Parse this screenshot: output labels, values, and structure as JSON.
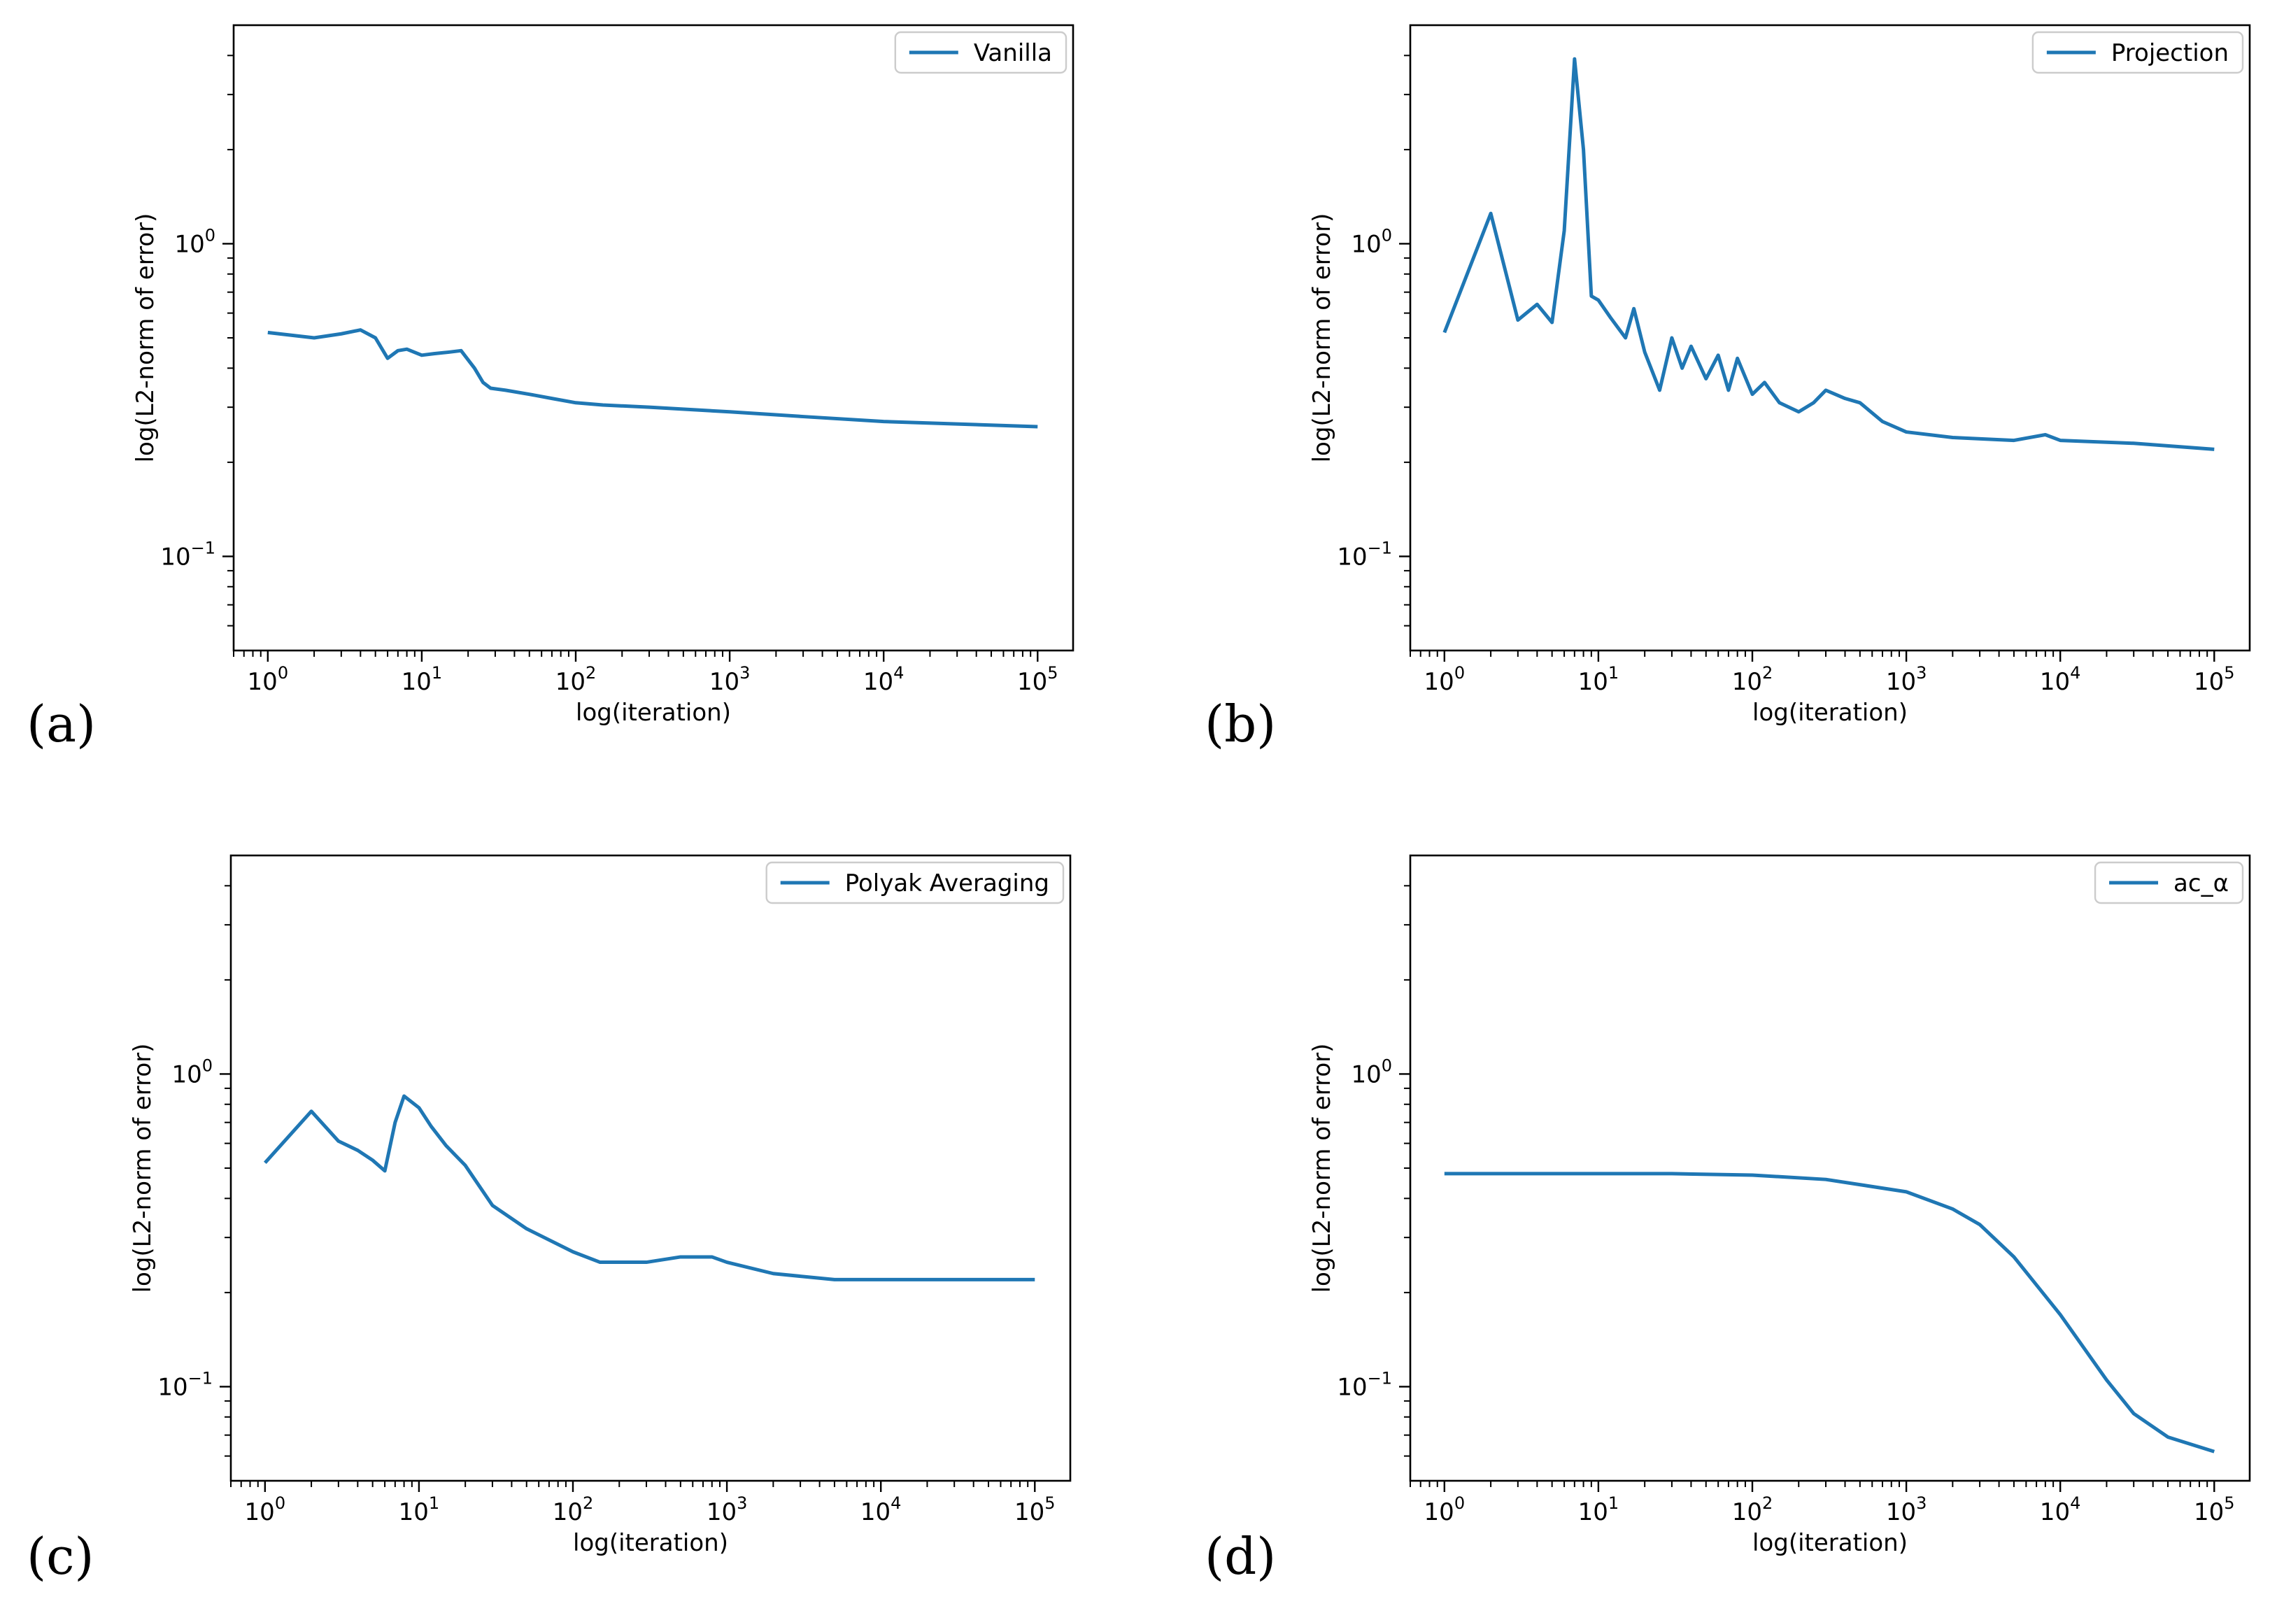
{
  "chart_data": [
    {
      "type": "line",
      "panel_label": "(a)",
      "series_name": "Vanilla",
      "legend_position": "top-right",
      "xlabel": "log(iteration)",
      "ylabel": "log(L2-norm of error)",
      "xscale": "log",
      "yscale": "log",
      "xlim": [
        0.6,
        170000
      ],
      "ylim": [
        0.05,
        5
      ],
      "x_ticks": [
        {
          "base": "10",
          "exp": "0",
          "value": 1
        },
        {
          "base": "10",
          "exp": "1",
          "value": 10
        },
        {
          "base": "10",
          "exp": "2",
          "value": 100
        },
        {
          "base": "10",
          "exp": "3",
          "value": 1000
        },
        {
          "base": "10",
          "exp": "4",
          "value": 10000
        },
        {
          "base": "10",
          "exp": "5",
          "value": 100000
        }
      ],
      "y_ticks": [
        {
          "base": "10",
          "exp": "0",
          "value": 1
        },
        {
          "base": "10",
          "exp": "−1",
          "value": 0.1
        }
      ],
      "line_color": "#1f77b4",
      "x": [
        1,
        2,
        3,
        4,
        5,
        6,
        7,
        8,
        10,
        12,
        15,
        18,
        22,
        25,
        28,
        35,
        50,
        70,
        100,
        150,
        300,
        1000,
        3000,
        10000,
        100000
      ],
      "y": [
        0.52,
        0.5,
        0.515,
        0.53,
        0.5,
        0.43,
        0.455,
        0.46,
        0.44,
        0.445,
        0.45,
        0.455,
        0.4,
        0.36,
        0.345,
        0.34,
        0.33,
        0.32,
        0.31,
        0.305,
        0.3,
        0.29,
        0.28,
        0.27,
        0.26
      ]
    },
    {
      "type": "line",
      "panel_label": "(b)",
      "series_name": "Projection",
      "legend_position": "top-right",
      "xlabel": "log(iteration)",
      "ylabel": "log(L2-norm of error)",
      "xscale": "log",
      "yscale": "log",
      "xlim": [
        0.6,
        170000
      ],
      "ylim": [
        0.05,
        5
      ],
      "x_ticks": [
        {
          "base": "10",
          "exp": "0",
          "value": 1
        },
        {
          "base": "10",
          "exp": "1",
          "value": 10
        },
        {
          "base": "10",
          "exp": "2",
          "value": 100
        },
        {
          "base": "10",
          "exp": "3",
          "value": 1000
        },
        {
          "base": "10",
          "exp": "4",
          "value": 10000
        },
        {
          "base": "10",
          "exp": "5",
          "value": 100000
        }
      ],
      "y_ticks": [
        {
          "base": "10",
          "exp": "0",
          "value": 1
        },
        {
          "base": "10",
          "exp": "−1",
          "value": 0.1
        }
      ],
      "line_color": "#1f77b4",
      "x": [
        1,
        2,
        3,
        4,
        5,
        6,
        7,
        8,
        9,
        10,
        12,
        15,
        17,
        20,
        25,
        30,
        35,
        40,
        50,
        60,
        70,
        80,
        100,
        120,
        150,
        200,
        250,
        300,
        400,
        500,
        700,
        1000,
        2000,
        5000,
        8000,
        10000,
        30000,
        100000
      ],
      "y": [
        0.52,
        1.25,
        0.57,
        0.64,
        0.56,
        1.1,
        3.9,
        2.0,
        0.68,
        0.66,
        0.58,
        0.5,
        0.62,
        0.45,
        0.34,
        0.5,
        0.4,
        0.47,
        0.37,
        0.44,
        0.34,
        0.43,
        0.33,
        0.36,
        0.31,
        0.29,
        0.31,
        0.34,
        0.32,
        0.31,
        0.27,
        0.25,
        0.24,
        0.235,
        0.245,
        0.235,
        0.23,
        0.22
      ]
    },
    {
      "type": "line",
      "panel_label": "(c)",
      "series_name": "Polyak Averaging",
      "legend_position": "top-right",
      "xlabel": "log(iteration)",
      "ylabel": "log(L2-norm of error)",
      "xscale": "log",
      "yscale": "log",
      "xlim": [
        0.6,
        170000
      ],
      "ylim": [
        0.05,
        5
      ],
      "x_ticks": [
        {
          "base": "10",
          "exp": "0",
          "value": 1
        },
        {
          "base": "10",
          "exp": "1",
          "value": 10
        },
        {
          "base": "10",
          "exp": "2",
          "value": 100
        },
        {
          "base": "10",
          "exp": "3",
          "value": 1000
        },
        {
          "base": "10",
          "exp": "4",
          "value": 10000
        },
        {
          "base": "10",
          "exp": "5",
          "value": 100000
        }
      ],
      "y_ticks": [
        {
          "base": "10",
          "exp": "0",
          "value": 1
        },
        {
          "base": "10",
          "exp": "−1",
          "value": 0.1
        }
      ],
      "line_color": "#1f77b4",
      "x": [
        1,
        2,
        3,
        4,
        5,
        6,
        7,
        8,
        10,
        12,
        15,
        20,
        30,
        50,
        100,
        150,
        200,
        300,
        500,
        800,
        1000,
        2000,
        5000,
        10000,
        100000
      ],
      "y": [
        0.52,
        0.76,
        0.61,
        0.57,
        0.53,
        0.49,
        0.7,
        0.85,
        0.78,
        0.68,
        0.59,
        0.51,
        0.38,
        0.32,
        0.27,
        0.25,
        0.25,
        0.25,
        0.26,
        0.26,
        0.25,
        0.23,
        0.22,
        0.22,
        0.22
      ]
    },
    {
      "type": "line",
      "panel_label": "(d)",
      "series_name": "ac_α",
      "legend_position": "top-right",
      "xlabel": "log(iteration)",
      "ylabel": "log(L2-norm of error)",
      "xscale": "log",
      "yscale": "log",
      "xlim": [
        0.6,
        170000
      ],
      "ylim": [
        0.05,
        5
      ],
      "x_ticks": [
        {
          "base": "10",
          "exp": "0",
          "value": 1
        },
        {
          "base": "10",
          "exp": "1",
          "value": 10
        },
        {
          "base": "10",
          "exp": "2",
          "value": 100
        },
        {
          "base": "10",
          "exp": "3",
          "value": 1000
        },
        {
          "base": "10",
          "exp": "4",
          "value": 10000
        },
        {
          "base": "10",
          "exp": "5",
          "value": 100000
        }
      ],
      "y_ticks": [
        {
          "base": "10",
          "exp": "0",
          "value": 1
        },
        {
          "base": "10",
          "exp": "−1",
          "value": 0.1
        }
      ],
      "line_color": "#1f77b4",
      "x": [
        1,
        10,
        30,
        100,
        300,
        1000,
        2000,
        3000,
        5000,
        10000,
        20000,
        30000,
        50000,
        100000
      ],
      "y": [
        0.48,
        0.48,
        0.48,
        0.475,
        0.46,
        0.42,
        0.37,
        0.33,
        0.26,
        0.17,
        0.105,
        0.082,
        0.069,
        0.062
      ]
    }
  ]
}
